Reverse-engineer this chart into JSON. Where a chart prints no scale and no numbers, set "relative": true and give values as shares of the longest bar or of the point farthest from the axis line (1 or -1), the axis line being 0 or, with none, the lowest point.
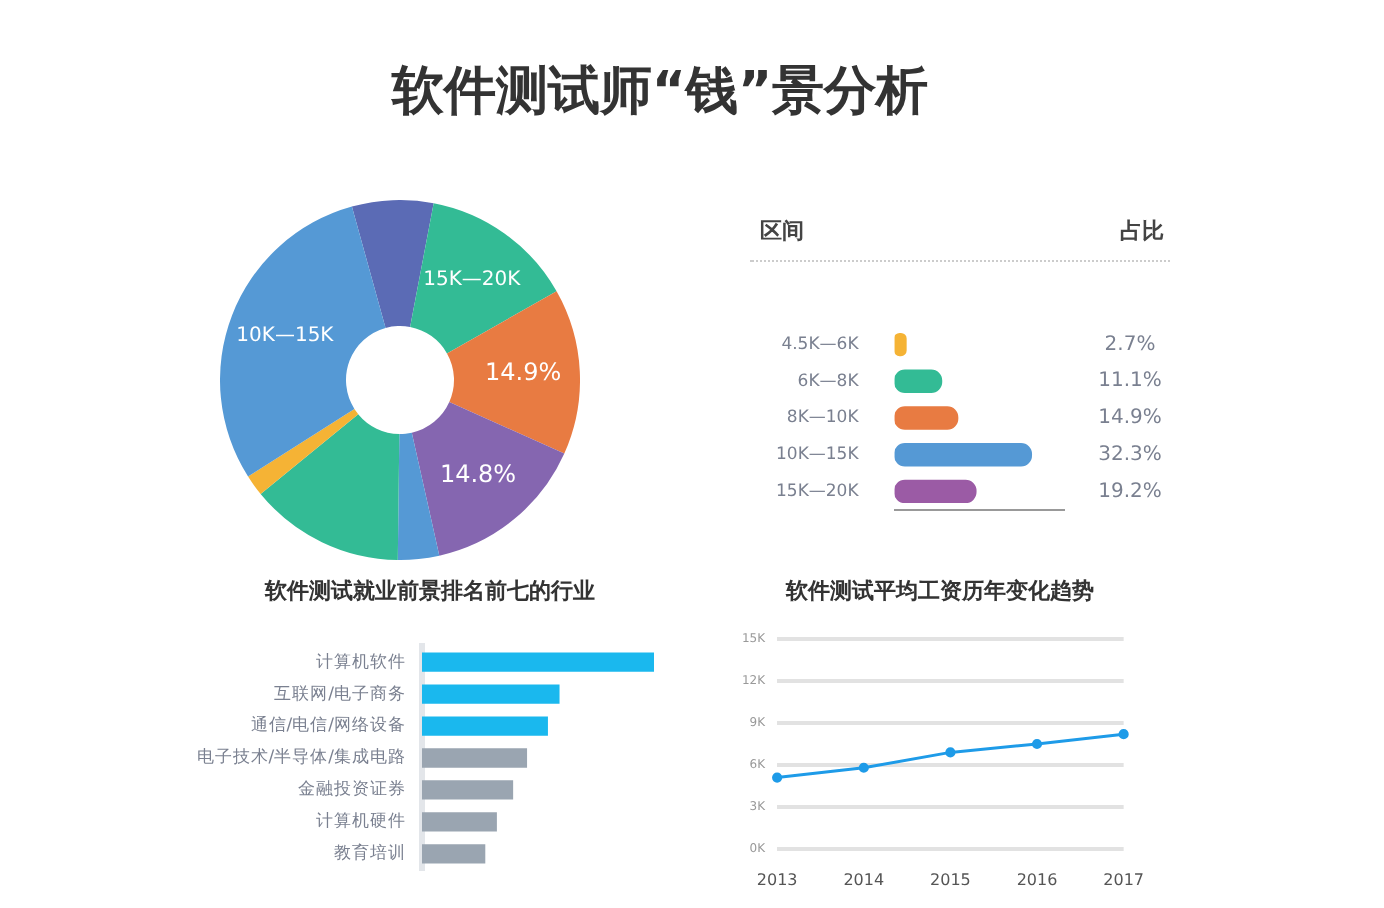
{
  "chart_data": [
    {
      "type": "donut",
      "title": "软件测试师“钱”景分析",
      "categories": [
        null,
        "15K—20K",
        null,
        null,
        null,
        null,
        null,
        "10K—15K"
      ],
      "values": [
        7.3,
        13.8,
        14.9,
        14.8,
        3.7,
        13.9,
        1.9,
        29.7
      ],
      "colors": [
        "#5b6bb5",
        "#33bb95",
        "#e87b42",
        "#8566b0",
        "#5599d5",
        "#33bb95",
        "#f5b335",
        "#5599d5"
      ],
      "value_labels": [
        null,
        null,
        "14.9%",
        "14.8%",
        null,
        null,
        null,
        null
      ],
      "legend": false
    },
    {
      "type": "bar",
      "orientation": "horizontal",
      "ylabel": "区间",
      "annotations": [
        "占比"
      ],
      "categories": [
        "4.5K—6K",
        "6K—8K",
        "8K—10K",
        "10K—15K",
        "15K—20K"
      ],
      "values": [
        2.7,
        11.1,
        14.9,
        32.3,
        19.2
      ],
      "colors": [
        "#f5b335",
        "#33bb95",
        "#e87b42",
        "#5599d5",
        "#9b5ba5"
      ],
      "value_labels": [
        "2.7%",
        "11.1%",
        "14.9%",
        "32.3%",
        "19.2%"
      ],
      "grid": false,
      "tick_labels": "y"
    },
    {
      "type": "bar",
      "orientation": "horizontal",
      "relative": true,
      "title": "软件测试就业前景排名前七的行业",
      "categories": [
        "计算机软件",
        "互联网/电子商务",
        "通信/电信/网络设备",
        "电子技术/半导体/集成电路",
        "金融投资证券",
        "计算机硬件",
        "教育培训"
      ],
      "values": [
        1,
        0.59,
        0.54,
        0.45,
        0.39,
        0.32,
        0.27
      ],
      "colors": [
        "#1ab8ee",
        "#1ab8ee",
        "#1ab8ee",
        "#9aa5b1",
        "#9aa5b1",
        "#9aa5b1",
        "#9aa5b1"
      ],
      "grid": false,
      "tick_labels": "y"
    },
    {
      "type": "line",
      "title": "软件测试平均工资历年变化趋势",
      "categories": [
        "2013",
        "2014",
        "2015",
        "2016",
        "2017"
      ],
      "series": [
        {
          "color": "#1e9be8",
          "values": [
            5.1,
            5.8,
            6.9,
            7.5,
            8.2
          ]
        }
      ],
      "ylim": [
        0,
        15
      ],
      "yticks": [
        {
          "value": 0,
          "label": "0K"
        },
        {
          "value": 3,
          "label": "3K"
        },
        {
          "value": 6,
          "label": "6K"
        },
        {
          "value": 9,
          "label": "9K"
        },
        {
          "value": 12,
          "label": "12K"
        },
        {
          "value": 15,
          "label": "15K"
        }
      ],
      "grid": "y",
      "marker": "circle"
    }
  ]
}
